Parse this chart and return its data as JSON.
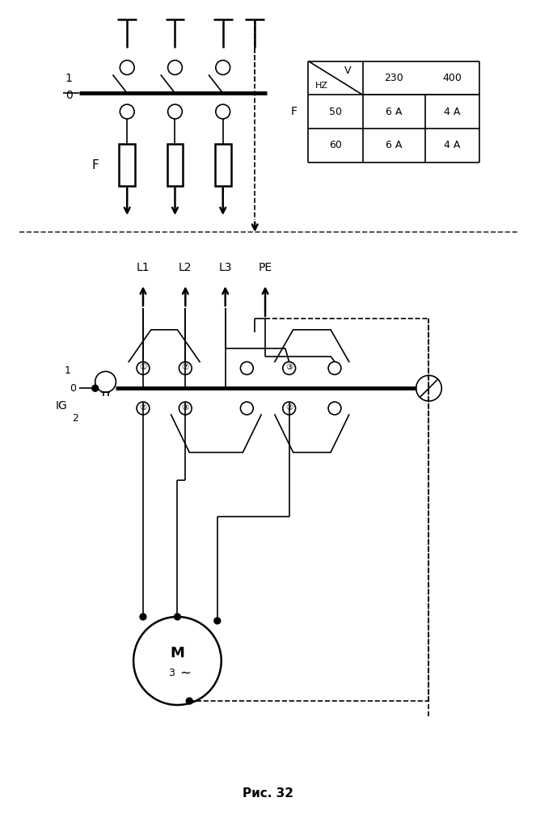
{
  "title": "Рис. 32",
  "bg_color": "#ffffff",
  "line_color": "#000000",
  "table": {
    "rows": [
      [
        "50",
        "6 A",
        "4 A"
      ],
      [
        "60",
        "6 A",
        "4 A"
      ]
    ]
  }
}
